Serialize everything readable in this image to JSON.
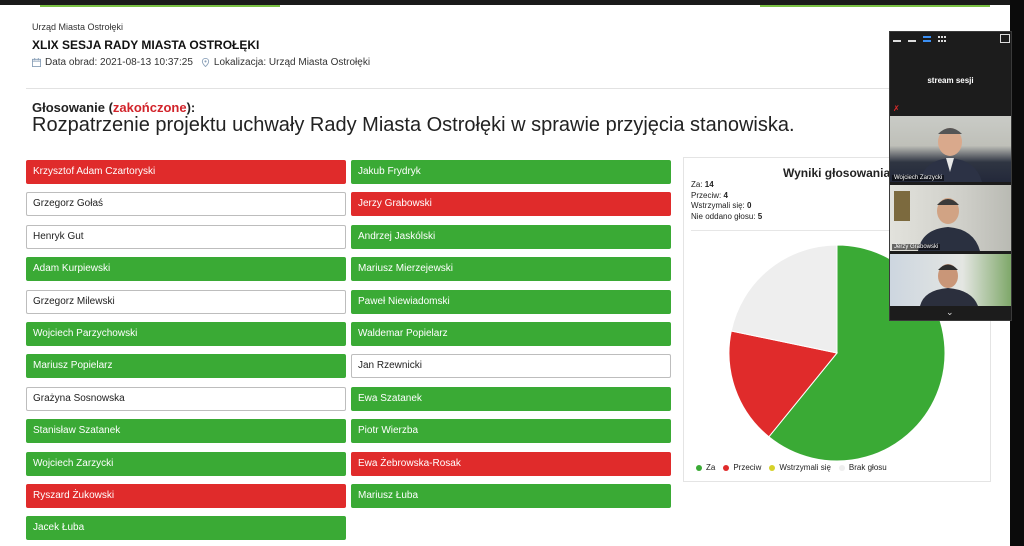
{
  "header": {
    "organization": "Urząd Miasta Ostrołęki",
    "session_title": "XLIX SESJA RADY MIASTA OSTROŁĘKI",
    "date_label": "Data obrad: 2021-08-13 10:37:25",
    "location_label": "Lokalizacja: Urząd Miasta Ostrołęki"
  },
  "vote": {
    "label": "Głosowanie (",
    "status": "zakończone",
    "label_end": "):",
    "resolution": "Rozpatrzenie projektu uchwały Rady Miasta Ostrołęki w sprawie przyjęcia stanowiska."
  },
  "members_left": [
    {
      "name": "Krzysztof Adam Czartoryski",
      "vote": "no"
    },
    {
      "name": "Grzegorz Gołaś",
      "vote": "none"
    },
    {
      "name": "Henryk Gut",
      "vote": "none"
    },
    {
      "name": "Adam Kurpiewski",
      "vote": "yes"
    },
    {
      "name": "Grzegorz Milewski",
      "vote": "none"
    },
    {
      "name": "Wojciech Parzychowski",
      "vote": "yes"
    },
    {
      "name": "Mariusz Popielarz",
      "vote": "yes"
    },
    {
      "name": "Grażyna Sosnowska",
      "vote": "none"
    },
    {
      "name": "Stanisław Szatanek",
      "vote": "yes"
    },
    {
      "name": "Wojciech Zarzycki",
      "vote": "yes"
    },
    {
      "name": "Ryszard Żukowski",
      "vote": "no"
    },
    {
      "name": "Jacek Łuba",
      "vote": "yes"
    }
  ],
  "members_right": [
    {
      "name": "Jakub Frydryk",
      "vote": "yes"
    },
    {
      "name": "Jerzy Grabowski",
      "vote": "no"
    },
    {
      "name": "Andrzej Jaskólski",
      "vote": "yes"
    },
    {
      "name": "Mariusz Mierzejewski",
      "vote": "yes"
    },
    {
      "name": "Paweł Niewiadomski",
      "vote": "yes"
    },
    {
      "name": "Waldemar Popielarz",
      "vote": "yes"
    },
    {
      "name": "Jan Rzewnicki",
      "vote": "none"
    },
    {
      "name": "Ewa Szatanek",
      "vote": "yes"
    },
    {
      "name": "Piotr Wierzba",
      "vote": "yes"
    },
    {
      "name": "Ewa Żebrowska-Rosak",
      "vote": "no"
    },
    {
      "name": "Mariusz Łuba",
      "vote": "yes"
    }
  ],
  "results": {
    "title": "Wyniki głosowania:",
    "for_label": "Za:",
    "for_value": "14",
    "against_label": "Przeciw:",
    "against_value": "4",
    "abstain_label": "Wstrzymali się:",
    "abstain_value": "0",
    "none_label": "Nie oddano głosu:",
    "none_value": "5"
  },
  "chart_data": {
    "type": "pie",
    "categories": [
      "Za",
      "Przeciw",
      "Wstrzymali się",
      "Brak głosu"
    ],
    "values": [
      14,
      4,
      0,
      5
    ],
    "colors": [
      "#3aaa35",
      "#e02b2b",
      "#d6d229",
      "#eeeeee"
    ],
    "legend_position": "bottom"
  },
  "colors": {
    "yes": "#3aaa35",
    "no": "#e02b2b",
    "accent": "#7ac143"
  },
  "video": {
    "stream_label": "stream sesji",
    "participants": [
      "Wojciech Zarzycki",
      "Jerzy Grabowski",
      ""
    ],
    "icons": [
      "minimize-icon",
      "layout-icon",
      "speaker-view-icon",
      "gallery-icon",
      "exit-fullscreen-icon",
      "chevron-down-icon"
    ]
  }
}
